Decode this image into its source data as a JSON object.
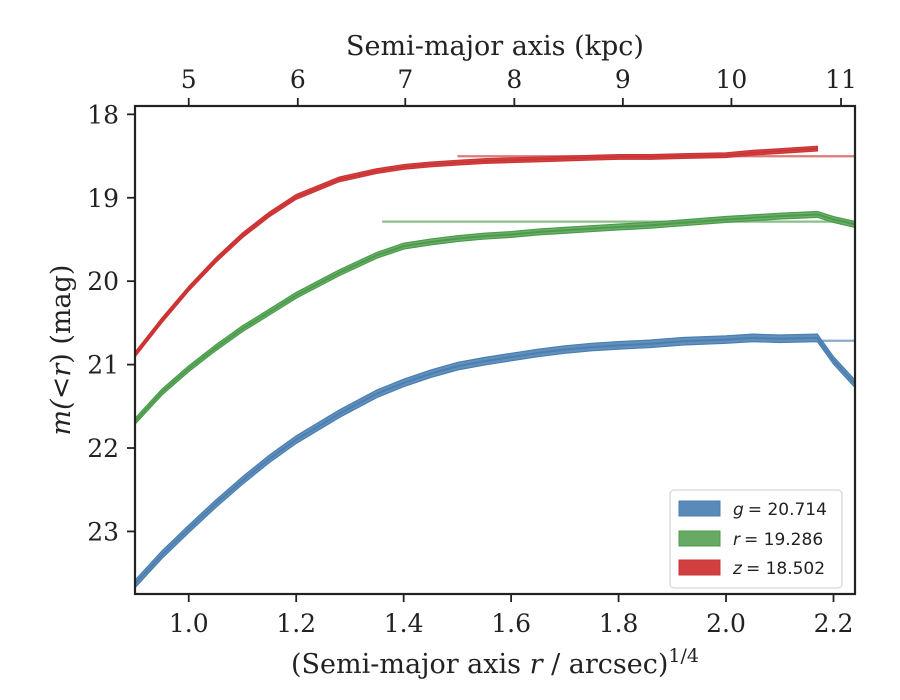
{
  "chart_data": {
    "type": "line",
    "xlabel_prefix": "(Semi-major axis ",
    "xlabel_var": "r",
    "xlabel_suffix": " / arcsec)",
    "xlabel_sup": "1/4",
    "ylabel_m": "m",
    "ylabel_mid": "(<",
    "ylabel_r": "r",
    "ylabel_end": ") (mag)",
    "top_xlabel": "Semi-major axis (kpc)",
    "xlim": [
      0.9,
      2.24
    ],
    "ylim": [
      23.75,
      17.9
    ],
    "y_inverted": true,
    "xticks": [
      "1.0",
      "1.2",
      "1.4",
      "1.6",
      "1.8",
      "2.0",
      "2.2"
    ],
    "xtick_values": [
      1.0,
      1.2,
      1.4,
      1.6,
      1.8,
      2.0,
      2.2
    ],
    "yticks": [
      "18",
      "19",
      "20",
      "21",
      "22",
      "23"
    ],
    "ytick_values": [
      18,
      19,
      20,
      21,
      22,
      23
    ],
    "top_xticks": [
      "5",
      "6",
      "7",
      "8",
      "9",
      "10",
      "11"
    ],
    "top_xtick_positions": [
      1.0,
      1.203,
      1.403,
      1.606,
      1.808,
      2.01,
      2.214
    ],
    "legend_position": "lower-right",
    "series": [
      {
        "key": "g",
        "name": "g = 20.714",
        "legend_var": "g",
        "legend_value": "= 20.714",
        "color": "#4a7fb0",
        "fill_color": "#5a8ab8",
        "band_halfwidth": 0.045,
        "model": 20.714,
        "model_x_start": 2.17,
        "x": [
          0.9,
          0.95,
          1.0,
          1.05,
          1.1,
          1.15,
          1.2,
          1.28,
          1.35,
          1.4,
          1.45,
          1.5,
          1.55,
          1.6,
          1.65,
          1.7,
          1.75,
          1.8,
          1.86,
          1.92,
          2.0,
          2.05,
          2.1,
          2.17,
          2.2,
          2.24
        ],
        "y": [
          23.63,
          23.28,
          22.97,
          22.67,
          22.39,
          22.13,
          21.9,
          21.59,
          21.35,
          21.22,
          21.11,
          21.02,
          20.96,
          20.91,
          20.86,
          20.82,
          20.79,
          20.77,
          20.75,
          20.72,
          20.7,
          20.68,
          20.69,
          20.68,
          20.95,
          21.23
        ]
      },
      {
        "key": "r",
        "name": "r = 19.286",
        "legend_var": "r",
        "legend_value": "= 19.286",
        "color": "#4a9c4a",
        "fill_color": "#66aa66",
        "band_halfwidth": 0.035,
        "model": 19.286,
        "model_x_start": 1.36,
        "x": [
          0.9,
          0.95,
          1.0,
          1.05,
          1.1,
          1.15,
          1.2,
          1.28,
          1.35,
          1.4,
          1.45,
          1.5,
          1.55,
          1.6,
          1.65,
          1.7,
          1.75,
          1.8,
          1.86,
          1.92,
          2.0,
          2.05,
          2.1,
          2.17,
          2.2,
          2.24
        ],
        "y": [
          21.68,
          21.33,
          21.05,
          20.8,
          20.57,
          20.37,
          20.17,
          19.9,
          19.69,
          19.58,
          19.53,
          19.49,
          19.46,
          19.44,
          19.41,
          19.39,
          19.37,
          19.35,
          19.33,
          19.3,
          19.26,
          19.24,
          19.22,
          19.2,
          19.26,
          19.32
        ]
      },
      {
        "key": "z",
        "name": "z = 18.502",
        "legend_var": "z",
        "legend_value": "= 18.502",
        "color": "#cc3333",
        "fill_color": "#d04040",
        "band_halfwidth": 0.028,
        "model": 18.502,
        "model_x_start": 1.5,
        "x": [
          0.9,
          0.95,
          1.0,
          1.05,
          1.1,
          1.15,
          1.2,
          1.28,
          1.35,
          1.4,
          1.45,
          1.5,
          1.55,
          1.6,
          1.65,
          1.7,
          1.75,
          1.8,
          1.86,
          1.92,
          2.0,
          2.05,
          2.1,
          2.17
        ],
        "y": [
          20.88,
          20.47,
          20.09,
          19.75,
          19.45,
          19.2,
          18.99,
          18.78,
          18.68,
          18.63,
          18.6,
          18.58,
          18.56,
          18.55,
          18.54,
          18.53,
          18.52,
          18.51,
          18.51,
          18.5,
          18.49,
          18.46,
          18.44,
          18.41
        ]
      }
    ]
  }
}
